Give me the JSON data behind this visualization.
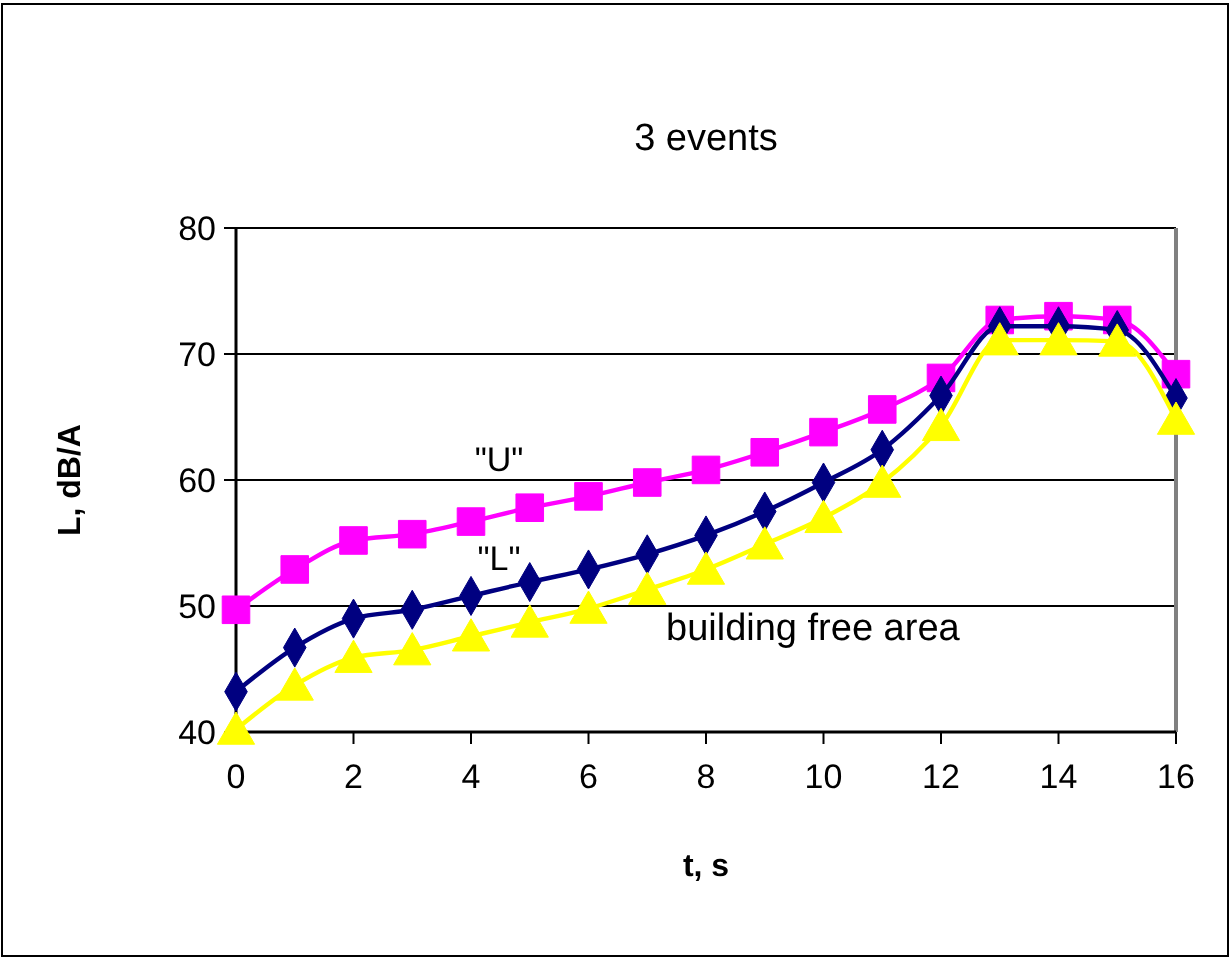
{
  "chart_data": {
    "type": "line",
    "title": "3 events",
    "xlabel": "t,  s",
    "ylabel": "L,  dB/A",
    "x": [
      0,
      1,
      2,
      3,
      4,
      5,
      6,
      7,
      8,
      9,
      10,
      11,
      12,
      13,
      14,
      15,
      16
    ],
    "series": [
      {
        "name": "\"U\"",
        "color": "#ff00ff",
        "marker": "square",
        "values": [
          49.7,
          52.9,
          55.2,
          55.7,
          56.7,
          57.8,
          58.7,
          59.8,
          60.8,
          62.2,
          63.8,
          65.6,
          68.1,
          72.7,
          73.0,
          72.7,
          68.4
        ]
      },
      {
        "name": "\"L\"",
        "color": "#000080",
        "marker": "diamond",
        "values": [
          43.2,
          46.7,
          49.0,
          49.7,
          50.8,
          51.9,
          52.9,
          54.1,
          55.6,
          57.5,
          59.8,
          62.4,
          66.7,
          72.2,
          72.2,
          71.9,
          66.5
        ]
      },
      {
        "color": "#ffff00",
        "marker": "triangle",
        "values": [
          40.2,
          43.7,
          45.9,
          46.5,
          47.6,
          48.7,
          49.8,
          51.3,
          52.9,
          54.9,
          57.0,
          59.8,
          64.3,
          71.1,
          71.1,
          71.0,
          64.8
        ]
      }
    ],
    "xlim": [
      0,
      16
    ],
    "xticks": [
      0,
      2,
      4,
      6,
      8,
      10,
      12,
      14,
      16
    ],
    "ylim": [
      40,
      80
    ],
    "yticks": [
      40,
      50,
      60,
      70,
      80
    ],
    "grid": "y",
    "line_style": "solid",
    "annotations": [
      "building free area"
    ]
  }
}
